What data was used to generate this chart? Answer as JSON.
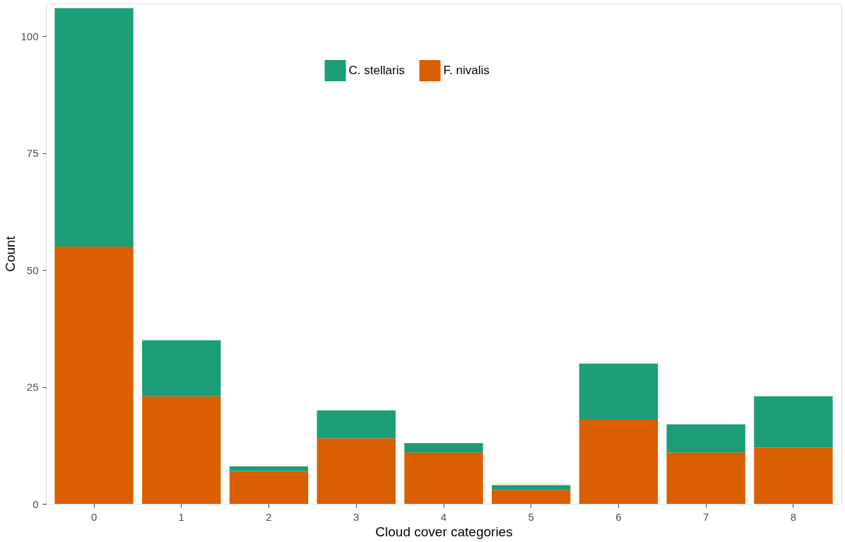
{
  "chart_data": {
    "type": "bar",
    "stacked": true,
    "xlabel": "Cloud cover categories",
    "ylabel": "Count",
    "categories": [
      "0",
      "1",
      "2",
      "3",
      "4",
      "5",
      "6",
      "7",
      "8"
    ],
    "series": [
      {
        "name": "F. nivalis",
        "color": "#d95f02",
        "values": [
          55,
          23,
          7,
          14,
          11,
          3,
          18,
          11,
          12
        ]
      },
      {
        "name": "C. stellaris",
        "color": "#1b9e77",
        "values": [
          51,
          12,
          1,
          6,
          2,
          1,
          12,
          6,
          11
        ]
      }
    ],
    "ylim": [
      0,
      107
    ],
    "yticks": [
      0,
      25,
      50,
      75,
      100
    ],
    "grid": false,
    "legend": "top"
  }
}
